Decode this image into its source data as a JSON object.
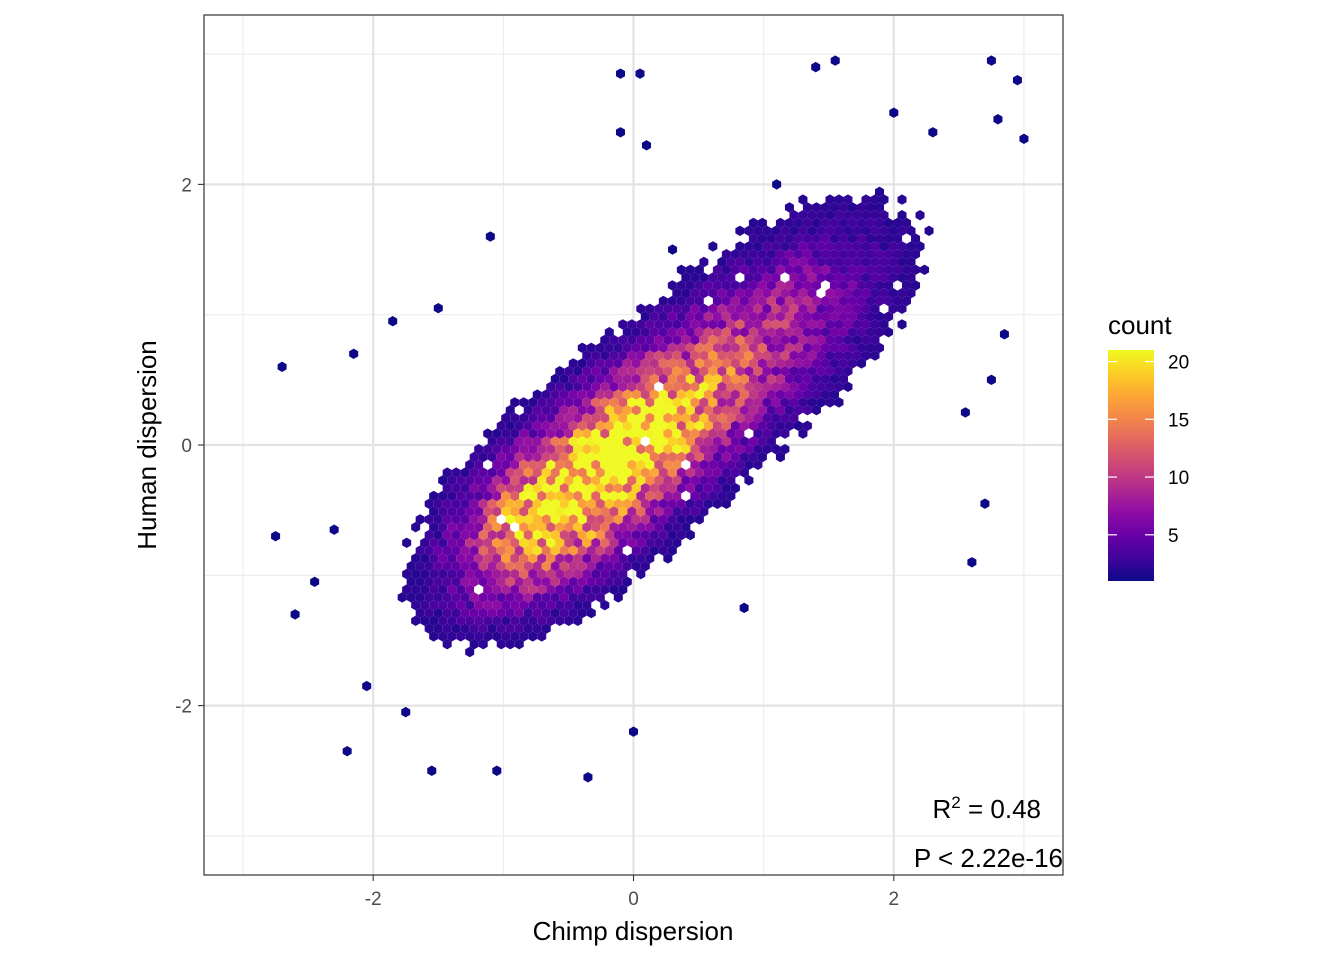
{
  "chart_data": {
    "type": "heatmap",
    "subtype": "hexbin",
    "title": "",
    "xlabel": "Chimp dispersion",
    "ylabel": "Human dispersion",
    "xlim": [
      -3.3,
      3.3
    ],
    "ylim": [
      -3.3,
      3.3
    ],
    "x_ticks": [
      -2,
      0,
      2
    ],
    "y_ticks": [
      -2,
      0,
      2
    ],
    "x_tick_labels": [
      "-2",
      "0",
      "2"
    ],
    "y_tick_labels": [
      "-2",
      "0",
      "2"
    ],
    "grid": true,
    "legend": {
      "title": "count",
      "position": "right",
      "range": [
        1,
        21
      ],
      "breaks": [
        5,
        10,
        15,
        20
      ],
      "break_labels": [
        "5",
        "10",
        "15",
        "20"
      ],
      "colormap": "plasma"
    },
    "colormap_stops": [
      "#0d0887",
      "#41049d",
      "#6a00a8",
      "#8f0da4",
      "#b12a90",
      "#cc4778",
      "#e16462",
      "#f2844b",
      "#fca636",
      "#fcce25",
      "#f0f921"
    ],
    "annotations": {
      "r2_prefix": "R",
      "r2_sup": "2",
      "r2_value": " = 0.48",
      "p_value": "P < 2.22e-16"
    },
    "density_model": {
      "components": [
        {
          "center": [
            -0.6,
            -0.5
          ],
          "sd_major": 0.55,
          "sd_minor": 0.32,
          "peak": 18
        },
        {
          "center": [
            0.1,
            0.1
          ],
          "sd_major": 0.5,
          "sd_minor": 0.3,
          "peak": 14
        },
        {
          "center": [
            0.9,
            0.75
          ],
          "sd_major": 0.75,
          "sd_minor": 0.35,
          "peak": 8
        }
      ],
      "direction_slope": 0.85,
      "visibility_threshold": 0.9
    },
    "outlier_points": [
      [
        -2.7,
        0.6
      ],
      [
        -2.15,
        0.7
      ],
      [
        -1.85,
        0.95
      ],
      [
        -2.75,
        -0.7
      ],
      [
        -2.6,
        -1.3
      ],
      [
        -2.2,
        -2.35
      ],
      [
        -1.55,
        -2.5
      ],
      [
        -1.05,
        -2.5
      ],
      [
        -0.35,
        -2.55
      ],
      [
        0.0,
        -2.2
      ],
      [
        0.85,
        -1.25
      ],
      [
        2.6,
        -0.9
      ],
      [
        2.7,
        -0.45
      ],
      [
        2.55,
        0.25
      ],
      [
        2.75,
        0.5
      ],
      [
        2.85,
        0.85
      ],
      [
        -0.1,
        2.85
      ],
      [
        0.05,
        2.85
      ],
      [
        -0.1,
        2.4
      ],
      [
        0.1,
        2.3
      ],
      [
        1.4,
        2.9
      ],
      [
        1.55,
        2.95
      ],
      [
        2.75,
        2.95
      ],
      [
        2.95,
        2.8
      ],
      [
        2.8,
        2.5
      ],
      [
        3.0,
        2.35
      ],
      [
        -1.1,
        1.6
      ],
      [
        -1.5,
        1.05
      ],
      [
        -2.3,
        -0.65
      ],
      [
        -2.05,
        -1.85
      ],
      [
        -1.75,
        -2.05
      ],
      [
        -2.45,
        -1.05
      ],
      [
        2.0,
        2.55
      ],
      [
        2.3,
        2.4
      ],
      [
        0.3,
        1.5
      ],
      [
        1.1,
        2.0
      ]
    ]
  }
}
